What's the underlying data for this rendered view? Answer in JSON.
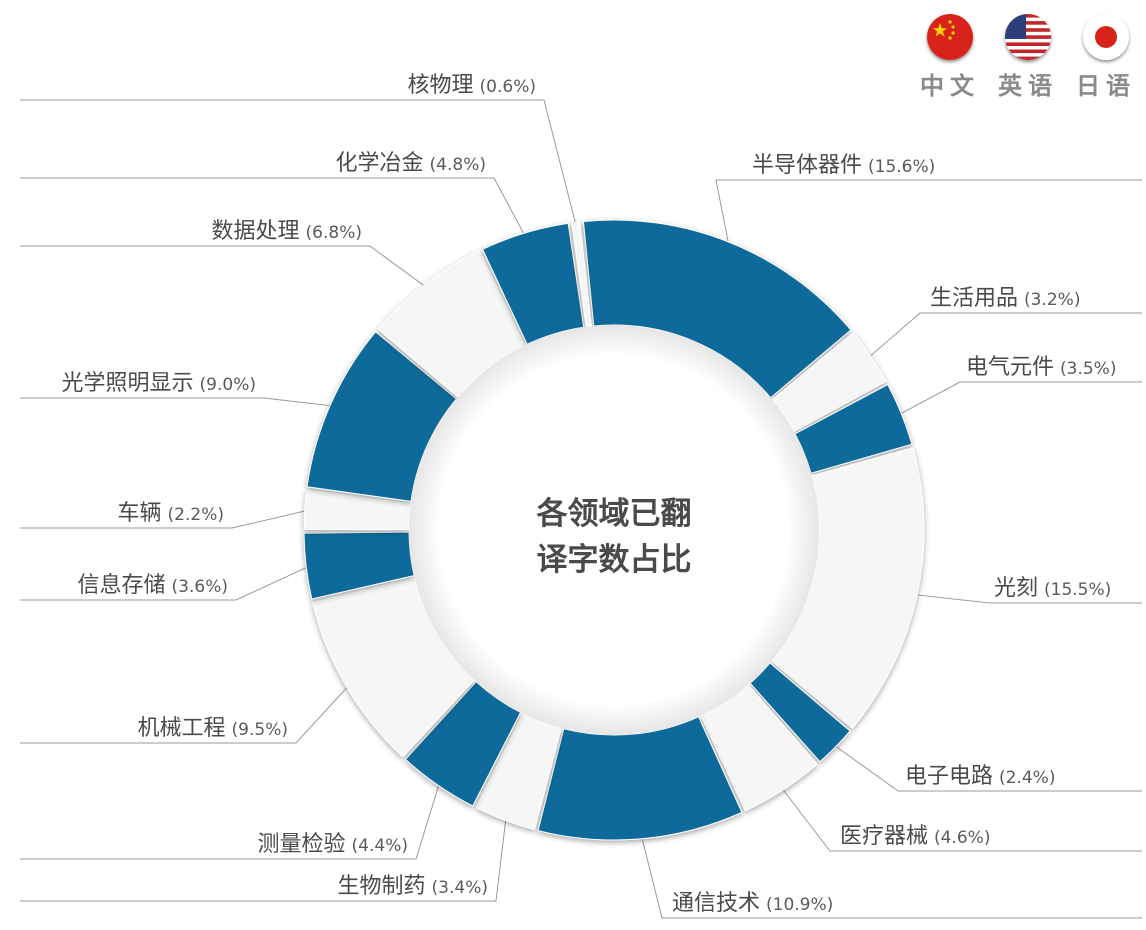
{
  "languages": [
    {
      "label": "中文",
      "icon": "china-flag-icon"
    },
    {
      "label": "英语",
      "icon": "usa-flag-icon"
    },
    {
      "label": "日语",
      "icon": "japan-flag-icon"
    }
  ],
  "center_title": [
    "各领域已翻",
    "译字数占比"
  ],
  "colors": {
    "blue": "#0a6a9a",
    "white": "#f6f6f6",
    "label": "#4a4a4a",
    "leader": "#9a9a9a"
  },
  "chart_data": {
    "type": "pie",
    "donut": true,
    "title": "各领域已翻译字数占比",
    "slices": [
      {
        "label": "半导体器件",
        "pct": "(15.6%)",
        "value": 15.6,
        "color": "blue"
      },
      {
        "label": "生活用品",
        "pct": "(3.2%)",
        "value": 3.2,
        "color": "white"
      },
      {
        "label": "电气元件",
        "pct": "(3.5%)",
        "value": 3.5,
        "color": "blue"
      },
      {
        "label": "光刻",
        "pct": "(15.5%)",
        "value": 15.5,
        "color": "white"
      },
      {
        "label": "电子电路",
        "pct": "(2.4%)",
        "value": 2.4,
        "color": "blue"
      },
      {
        "label": "医疗器械",
        "pct": "(4.6%)",
        "value": 4.6,
        "color": "white"
      },
      {
        "label": "通信技术",
        "pct": "(10.9%)",
        "value": 10.9,
        "color": "blue"
      },
      {
        "label": "生物制药",
        "pct": "(3.4%)",
        "value": 3.4,
        "color": "white"
      },
      {
        "label": "测量检验",
        "pct": "(4.4%)",
        "value": 4.4,
        "color": "blue"
      },
      {
        "label": "机械工程",
        "pct": "(9.5%)",
        "value": 9.5,
        "color": "white"
      },
      {
        "label": "信息存储",
        "pct": "(3.6%)",
        "value": 3.6,
        "color": "blue"
      },
      {
        "label": "车辆",
        "pct": "(2.2%)",
        "value": 2.2,
        "color": "white"
      },
      {
        "label": "光学照明显示",
        "pct": "(9.0%)",
        "value": 9.0,
        "color": "blue"
      },
      {
        "label": "数据处理",
        "pct": "(6.8%)",
        "value": 6.8,
        "color": "white"
      },
      {
        "label": "化学冶金",
        "pct": "(4.8%)",
        "value": 4.8,
        "color": "blue"
      },
      {
        "label": "核物理",
        "pct": "(0.6%)",
        "value": 0.6,
        "color": "white"
      }
    ]
  }
}
